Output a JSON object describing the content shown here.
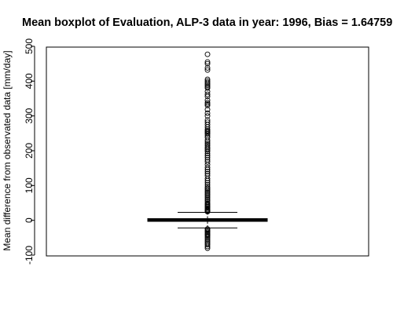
{
  "chart_data": {
    "type": "boxplot",
    "title": "Mean boxplot of Evaluation, ALP-3 data in year: 1996, Bias = 1.64759",
    "ylabel": "Mean difference from observated data [mm/day]",
    "xlabel": "",
    "ylim": [
      -100,
      500
    ],
    "yticks": [
      -100,
      0,
      100,
      200,
      300,
      400,
      500
    ],
    "ytick_labels": [
      "-100",
      "0",
      "100",
      "200",
      "300",
      "400",
      "500"
    ],
    "grid": false,
    "box": {
      "q1": -3,
      "median": 1,
      "q3": 5,
      "whisker_low": -22,
      "whisker_high": 23
    },
    "outliers": [
      477,
      455,
      450,
      438,
      432,
      405,
      400,
      396,
      392,
      388,
      384,
      380,
      370,
      362,
      356,
      345,
      338,
      334,
      330,
      318,
      308,
      300,
      288,
      282,
      275,
      268,
      262,
      258,
      255,
      252,
      248,
      243,
      238,
      230,
      225,
      220,
      215,
      210,
      206,
      202,
      198,
      192,
      186,
      180,
      174,
      168,
      160,
      152,
      146,
      140,
      134,
      128,
      120,
      114,
      108,
      102,
      96,
      92,
      88,
      84,
      80,
      76,
      72,
      68,
      64,
      60,
      56,
      52,
      48,
      45,
      42,
      39,
      36,
      33,
      30,
      28,
      26,
      25,
      -25,
      -28,
      -31,
      -34,
      -37,
      -40,
      -43,
      -46,
      -50,
      -54,
      -58,
      -62,
      -66,
      -70,
      -75,
      -80
    ]
  }
}
